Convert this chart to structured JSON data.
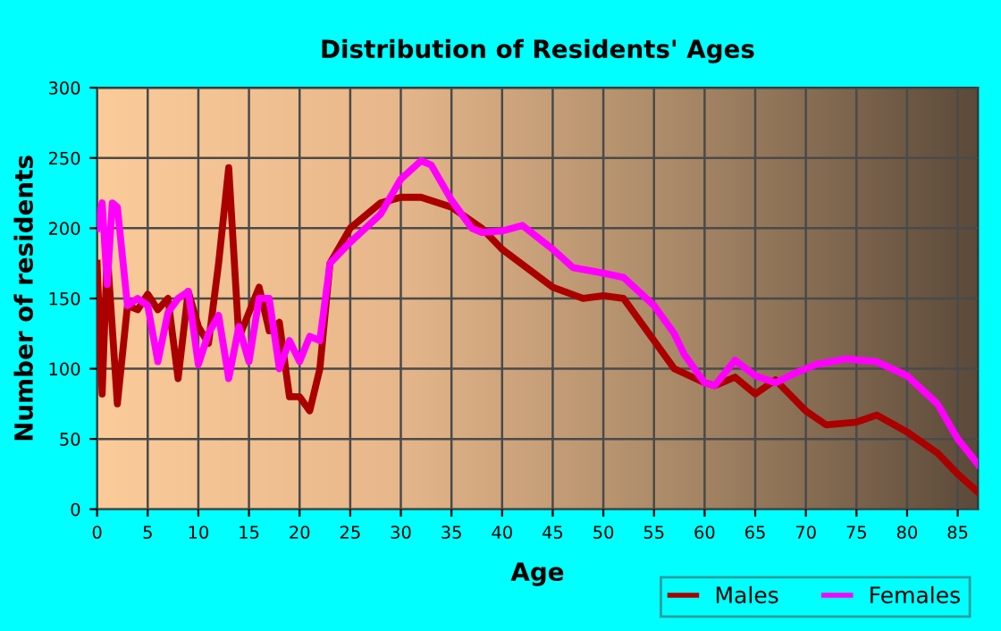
{
  "chart_data": {
    "type": "line",
    "title": "Distribution of Residents' Ages",
    "xlabel": "Age",
    "ylabel": "Number of residents",
    "xlim": [
      0,
      87
    ],
    "xticks": [
      0,
      5,
      10,
      15,
      20,
      25,
      30,
      35,
      40,
      45,
      50,
      55,
      60,
      65,
      70,
      75,
      80,
      85
    ],
    "ylim": [
      0,
      300
    ],
    "yticks": [
      0,
      50,
      100,
      150,
      200,
      250,
      300
    ],
    "grid": true,
    "legend": "bottom right",
    "marker": "none",
    "line_style": "solid",
    "series": [
      {
        "name": "Males",
        "color": "#aa0000",
        "x": [
          0,
          0.5,
          1,
          2,
          3,
          4,
          5,
          6,
          7,
          8,
          9,
          10,
          11,
          12,
          13,
          14,
          15,
          16,
          17,
          18,
          19,
          20,
          21,
          22,
          23,
          25,
          28,
          30,
          32,
          35,
          38,
          40,
          45,
          48,
          50,
          52,
          55,
          57,
          60,
          61,
          63,
          65,
          67,
          70,
          72,
          75,
          77,
          80,
          83,
          85,
          87
        ],
        "values": [
          175,
          82,
          183,
          75,
          145,
          142,
          153,
          142,
          150,
          93,
          155,
          130,
          118,
          175,
          243,
          122,
          140,
          158,
          127,
          133,
          80,
          80,
          70,
          100,
          175,
          200,
          218,
          222,
          222,
          215,
          200,
          185,
          158,
          150,
          152,
          150,
          120,
          100,
          90,
          88,
          94,
          82,
          92,
          70,
          60,
          62,
          67,
          55,
          40,
          25,
          12
        ]
      },
      {
        "name": "Females",
        "color": "#ff00ff",
        "x": [
          0,
          0.5,
          1,
          1.5,
          2,
          3,
          4,
          5,
          6,
          7,
          8,
          9,
          10,
          11,
          12,
          13,
          14,
          15,
          16,
          17,
          18,
          19,
          20,
          21,
          22,
          23,
          25,
          28,
          30,
          32,
          33,
          35,
          37,
          38,
          40,
          42,
          45,
          47,
          50,
          52,
          55,
          57,
          58,
          60,
          61,
          63,
          65,
          67,
          69,
          71,
          74,
          77,
          80,
          83,
          85,
          87
        ],
        "values": [
          200,
          218,
          160,
          218,
          215,
          145,
          150,
          145,
          105,
          140,
          150,
          155,
          103,
          125,
          138,
          93,
          130,
          105,
          150,
          150,
          100,
          120,
          105,
          123,
          120,
          175,
          190,
          210,
          235,
          248,
          245,
          220,
          200,
          197,
          198,
          202,
          185,
          172,
          168,
          165,
          145,
          125,
          110,
          90,
          88,
          106,
          95,
          90,
          97,
          103,
          107,
          105,
          95,
          75,
          50,
          32
        ]
      }
    ]
  }
}
